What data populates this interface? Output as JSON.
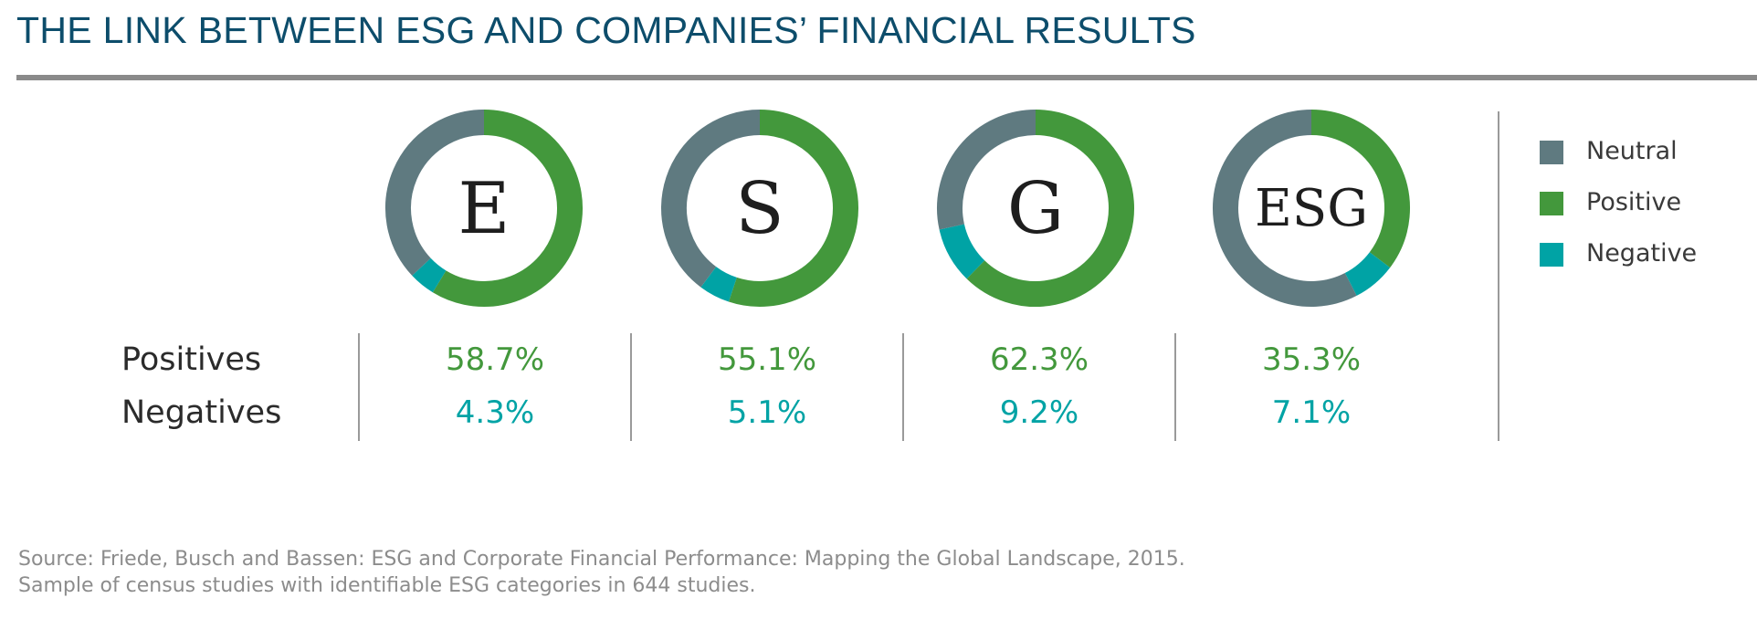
{
  "title": "THE LINK BETWEEN ESG AND COMPANIES’ FINANCIAL RESULTS",
  "row_labels": {
    "positives": "Positives",
    "negatives": "Negatives"
  },
  "colors": {
    "neutral": "#5f7a80",
    "positive": "#43983c",
    "negative": "#00a3a5",
    "title": "#0d4d6b"
  },
  "chart_data": {
    "type": "pie",
    "legend_position": "right",
    "legend": [
      {
        "name": "Neutral",
        "color": "#5f7a80"
      },
      {
        "name": "Positive",
        "color": "#43983c"
      },
      {
        "name": "Negative",
        "color": "#00a3a5"
      }
    ],
    "categories": [
      "E",
      "S",
      "G",
      "ESG"
    ],
    "series": [
      {
        "name": "Positive",
        "values": [
          58.7,
          55.1,
          62.3,
          35.3
        ]
      },
      {
        "name": "Negative",
        "values": [
          4.3,
          5.1,
          9.2,
          7.1
        ]
      },
      {
        "name": "Neutral",
        "values": [
          37.0,
          39.8,
          28.5,
          57.6
        ]
      }
    ],
    "positive_labels": [
      "58.7%",
      "55.1%",
      "62.3%",
      "35.3%"
    ],
    "negative_labels": [
      "4.3%",
      "5.1%",
      "9.2%",
      "7.1%"
    ]
  },
  "source_lines": [
    "Source: Friede, Busch and Bassen: ESG and Corporate Financial Performance: Mapping the Global Landscape, 2015.",
    "Sample of census studies with identifiable ESG categories in 644 studies."
  ]
}
